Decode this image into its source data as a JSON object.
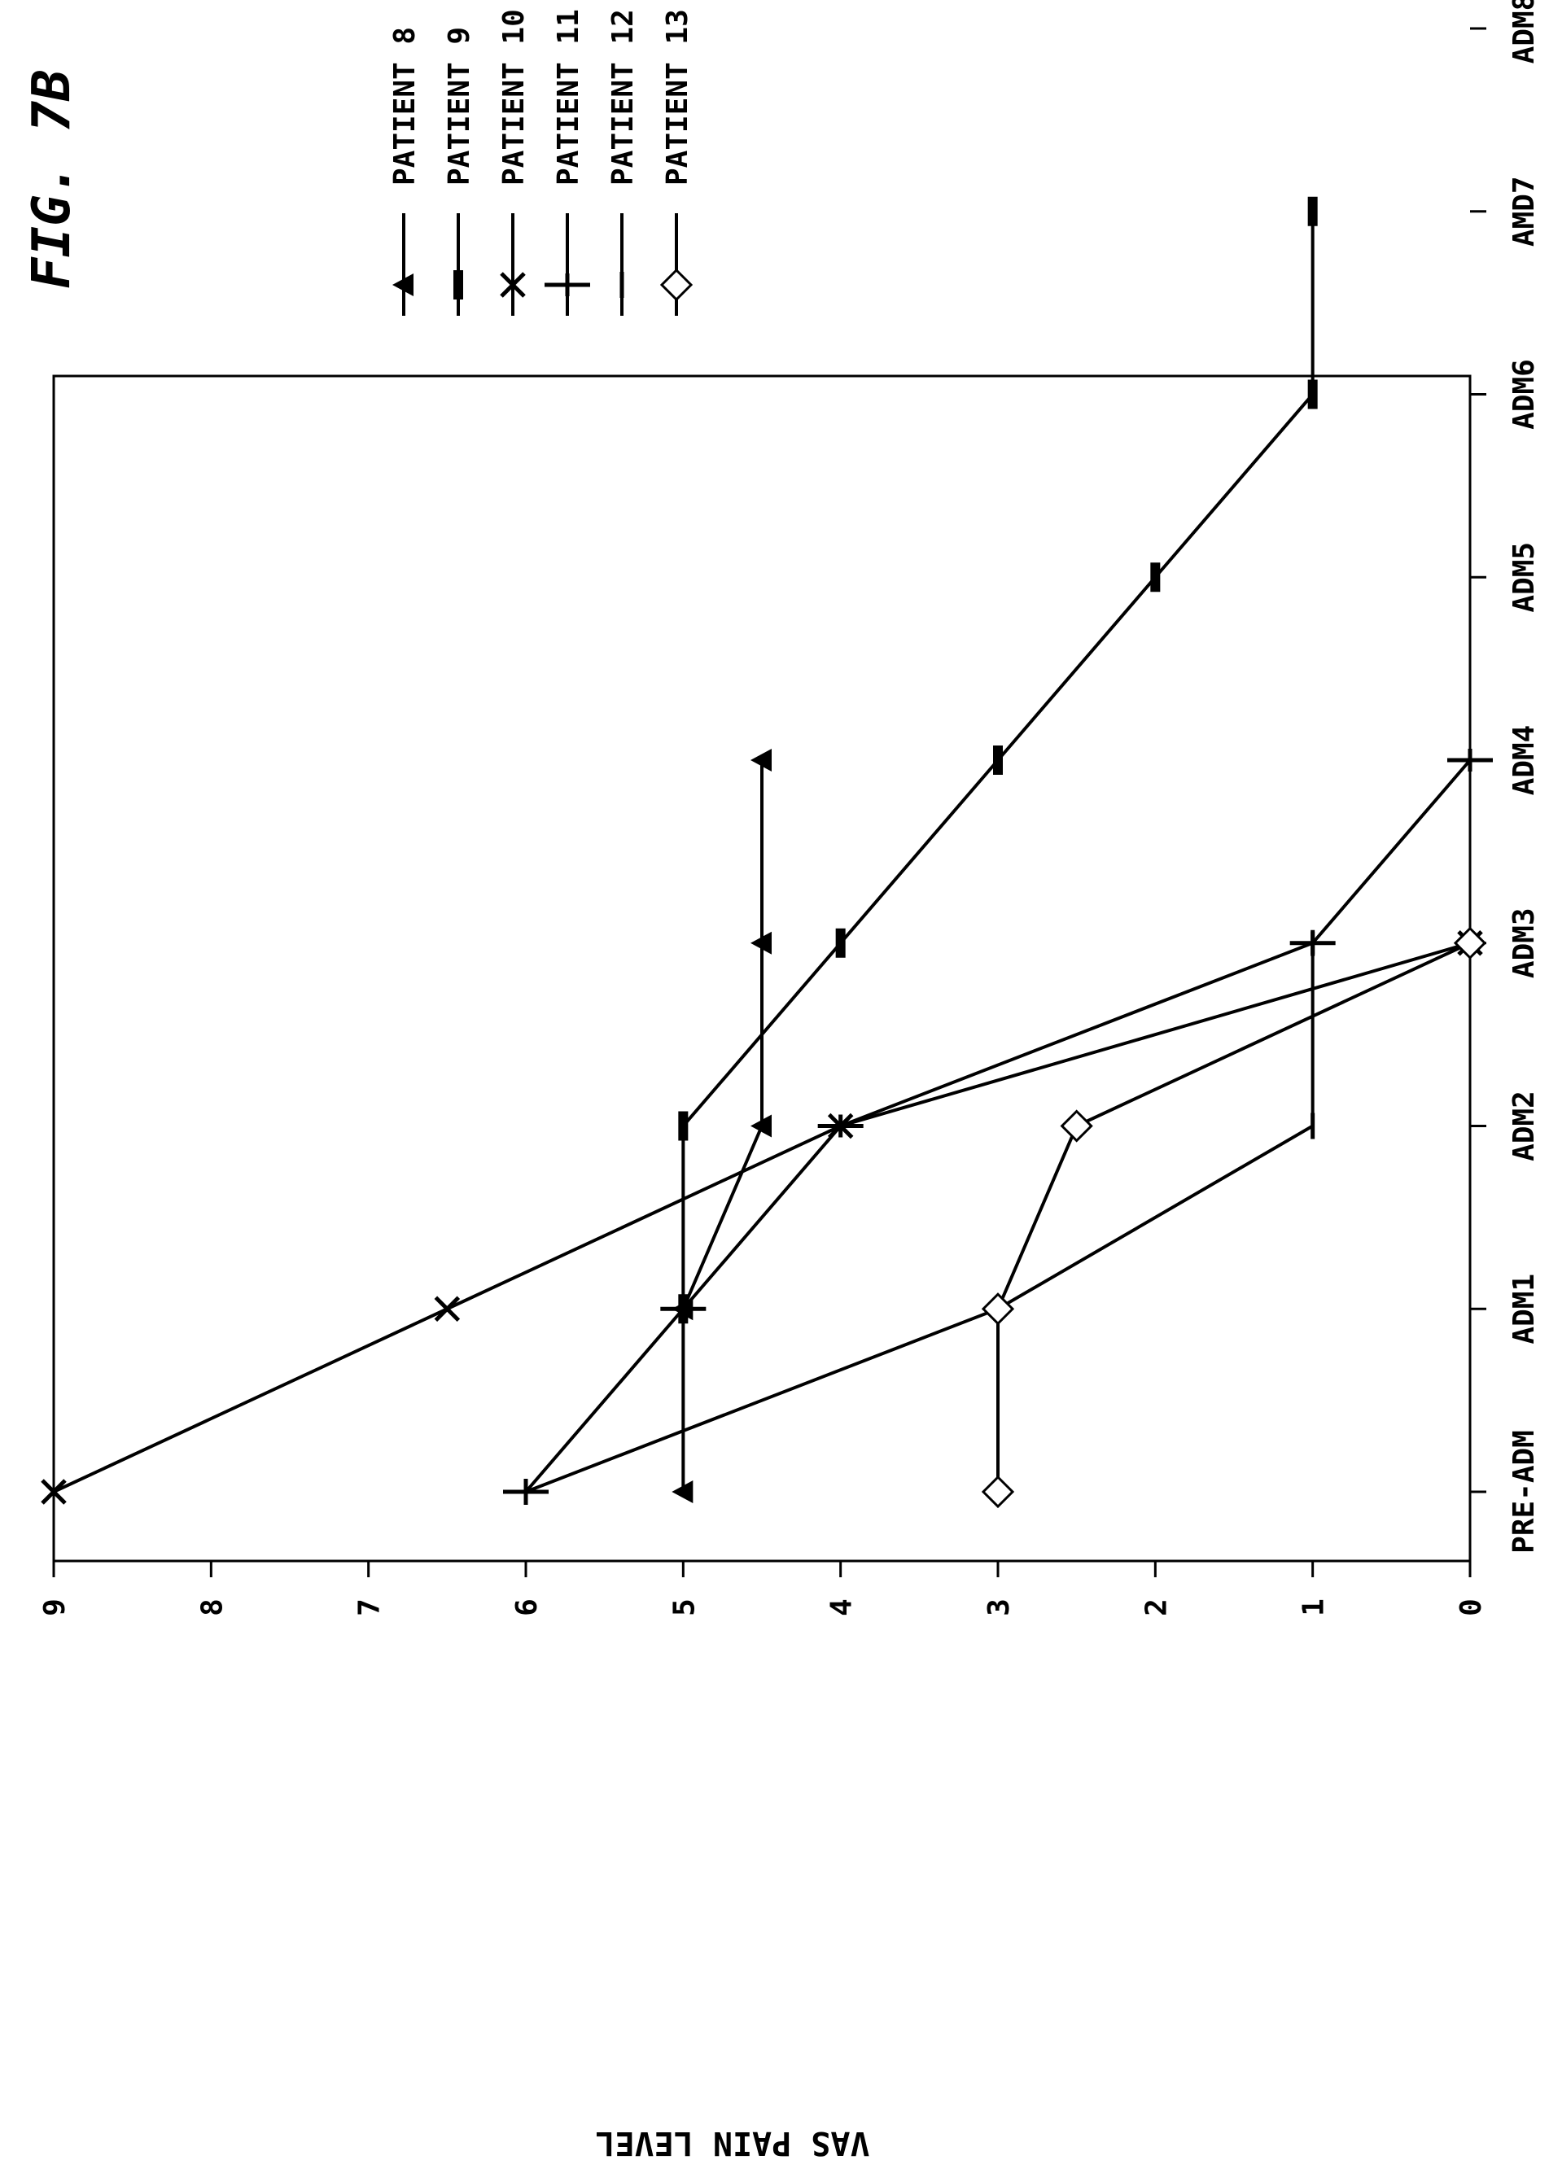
{
  "figure": {
    "title": "FIG. 7B"
  },
  "chart_data": {
    "type": "line",
    "title": "FIG. 7B",
    "xlabel": "",
    "ylabel": "VAS PAIN LEVEL",
    "categories": [
      "PRE-ADM",
      "ADM1",
      "ADM2",
      "ADM3",
      "ADM4",
      "ADM5",
      "ADM6",
      "AMD7",
      "ADM8"
    ],
    "ylim": [
      0,
      9
    ],
    "yticks": [
      "0",
      "1",
      "2",
      "3",
      "4",
      "5",
      "6",
      "7",
      "8",
      "9"
    ],
    "grid": false,
    "legend_position": "right",
    "series": [
      {
        "name": "PATIENT 8",
        "marker": "triangle",
        "values": [
          5,
          5,
          4.5,
          4.5,
          4.5,
          null,
          null,
          null,
          null
        ]
      },
      {
        "name": "PATIENT 9",
        "marker": "bar",
        "values": [
          null,
          5,
          5,
          4,
          3,
          2,
          1,
          1,
          null
        ]
      },
      {
        "name": "PATIENT 10",
        "marker": "x",
        "values": [
          9,
          6.5,
          4,
          0,
          null,
          null,
          null,
          null,
          null
        ]
      },
      {
        "name": "PATIENT 11",
        "marker": "tee",
        "values": [
          6,
          5,
          4,
          1,
          0,
          null,
          null,
          null,
          null
        ]
      },
      {
        "name": "PATIENT 12",
        "marker": "line",
        "values": [
          6,
          3,
          1,
          1,
          null,
          null,
          null,
          null,
          null
        ]
      },
      {
        "name": "PATIENT 13",
        "marker": "diamond",
        "values": [
          3,
          3,
          2.5,
          0,
          null,
          null,
          null,
          null,
          null
        ]
      }
    ]
  }
}
